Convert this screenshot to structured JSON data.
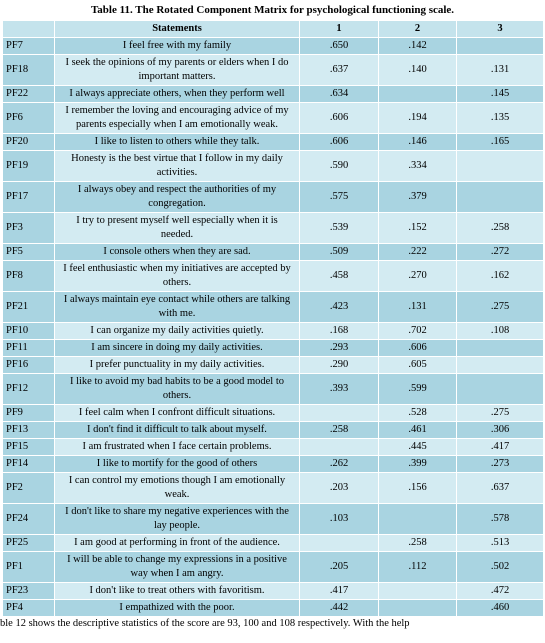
{
  "title": "Table 11. The Rotated Component Matrix for psychological functioning scale.",
  "table": {
    "header": [
      null,
      "Statements",
      "1",
      "2",
      "3"
    ],
    "rows": [
      [
        "PF7",
        "I feel free with my family",
        ".650",
        ".142",
        null
      ],
      [
        "PF18",
        "I seek the opinions of my parents or elders when I do important matters.",
        ".637",
        ".140",
        ".131"
      ],
      [
        "PF22",
        "I always appreciate others, when they perform well",
        ".634",
        null,
        ".145"
      ],
      [
        "PF6",
        "I remember the loving and encouraging advice of my parents especially when I am emotionally weak.",
        ".606",
        ".194",
        ".135"
      ],
      [
        "PF20",
        "I like to listen to others while they talk.",
        ".606",
        ".146",
        ".165"
      ],
      [
        "PF19",
        "Honesty is the best virtue that I follow in my daily activities.",
        ".590",
        ".334",
        null
      ],
      [
        "PF17",
        "I always obey and respect the authorities of my congregation.",
        ".575",
        ".379",
        null
      ],
      [
        "PF3",
        "I try to present myself well especially when it is needed.",
        ".539",
        ".152",
        ".258"
      ],
      [
        "PF5",
        "I console others when they are sad.",
        ".509",
        ".222",
        ".272"
      ],
      [
        "PF8",
        "I feel enthusiastic when my initiatives are accepted by others.",
        ".458",
        ".270",
        ".162"
      ],
      [
        "PF21",
        "I always maintain eye contact while others are talking with me.",
        ".423",
        ".131",
        ".275"
      ],
      [
        "PF10",
        "I can organize my daily activities quietly.",
        ".168",
        ".702",
        ".108"
      ],
      [
        "PF11",
        "I am sincere in doing my daily activities.",
        ".293",
        ".606",
        null
      ],
      [
        "PF16",
        "I prefer punctuality in my daily activities.",
        ".290",
        ".605",
        null
      ],
      [
        "PF12",
        "I like to avoid my bad habits to be a good model to others.",
        ".393",
        ".599",
        null
      ],
      [
        "PF9",
        "I feel calm when I confront difficult situations.",
        null,
        ".528",
        ".275"
      ],
      [
        "PF13",
        "I don't find it difficult to talk about myself.",
        ".258",
        ".461",
        ".306"
      ],
      [
        "PF15",
        "I am frustrated when I face certain problems.",
        null,
        ".445",
        ".417"
      ],
      [
        "PF14",
        "I like to mortify for the good of others",
        ".262",
        ".399",
        ".273"
      ],
      [
        "PF2",
        "I can control my emotions though I am emotionally weak.",
        ".203",
        ".156",
        ".637"
      ],
      [
        "PF24",
        "I don't like to share my negative experiences with the lay people.",
        ".103",
        null,
        ".578"
      ],
      [
        "PF25",
        "I am good at performing in front of the audience.",
        null,
        ".258",
        ".513"
      ],
      [
        "PF1",
        "I will be able to change my expressions in a positive way when I am angry.",
        ".205",
        ".112",
        ".502"
      ],
      [
        "PF23",
        "I don't like to treat others with favoritism.",
        ".417",
        null,
        ".472"
      ],
      [
        "PF4",
        "I empathized with the poor.",
        ".442",
        null,
        ".460"
      ]
    ]
  },
  "footer": "ble 12 shows the descriptive statistics of the score are 93, 100 and 108 respectively. With the help"
}
